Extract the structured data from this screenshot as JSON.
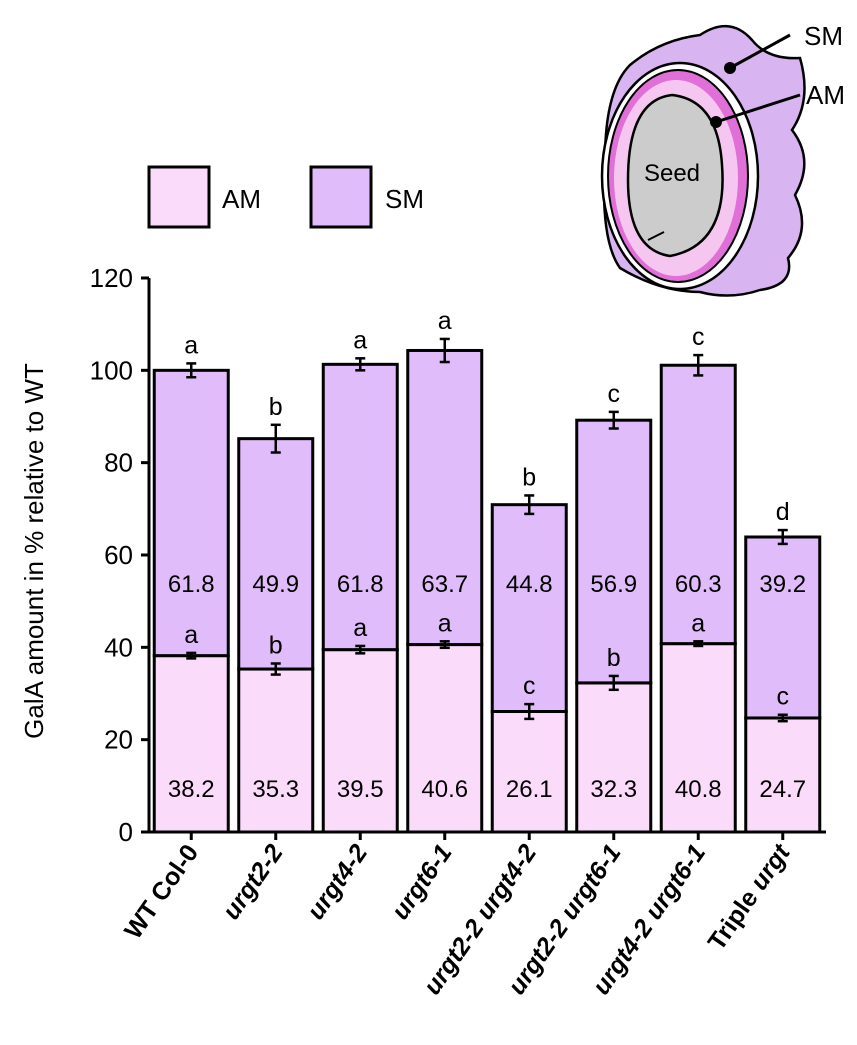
{
  "chart_data": {
    "type": "bar",
    "stacked": true,
    "categories": [
      {
        "label": "WT Col-0",
        "italic": false
      },
      {
        "label": "urgt2-2",
        "italic": true
      },
      {
        "label": "urgt4-2",
        "italic": true
      },
      {
        "label": "urgt6-1",
        "italic": true
      },
      {
        "label": "urgt2-2 urgt4-2",
        "italic": true
      },
      {
        "label": "urgt2-2 urgt6-1",
        "italic": true
      },
      {
        "label": "urgt4-2 urgt6-1",
        "italic": true
      },
      {
        "label": "Triple urgt",
        "italic": true,
        "plain_prefix": "Triple "
      }
    ],
    "series": [
      {
        "name": "AM",
        "color": "#fadcfa",
        "values": [
          38.2,
          35.3,
          39.5,
          40.6,
          26.1,
          32.3,
          40.8,
          24.7
        ],
        "value_labels": [
          "38.2",
          "35.3",
          "39.5",
          "40.6",
          "26.1",
          "32.3",
          "40.8",
          "24.7"
        ],
        "errors": [
          0.6,
          1.2,
          0.8,
          0.7,
          1.6,
          1.5,
          0.5,
          0.7
        ],
        "significance": [
          "a",
          "b",
          "a",
          "a",
          "c",
          "b",
          "a",
          "c"
        ]
      },
      {
        "name": "SM",
        "color": "#e0bcfa",
        "values": [
          61.8,
          49.9,
          61.8,
          63.7,
          44.8,
          56.9,
          60.3,
          39.2
        ],
        "value_labels": [
          "61.8",
          "49.9",
          "61.8",
          "63.7",
          "44.8",
          "56.9",
          "60.3",
          "39.2"
        ],
        "totals": [
          100,
          85.2,
          101.3,
          104.3,
          70.9,
          89.2,
          101.1,
          63.9
        ],
        "errors": [
          1.5,
          3.0,
          1.3,
          2.5,
          2.0,
          1.8,
          2.2,
          1.5
        ],
        "significance": [
          "a",
          "b",
          "a",
          "a",
          "b",
          "c",
          "c",
          "d"
        ]
      }
    ],
    "ylabel": "GalA amount in % relative to WT",
    "xlabel": "",
    "ylim": [
      0,
      120
    ],
    "yticks": [
      0,
      20,
      40,
      60,
      80,
      100,
      120
    ],
    "legend": {
      "placement": "top-left",
      "entries": [
        "AM",
        "SM"
      ]
    },
    "grid": false
  },
  "diagram": {
    "seed_label": "Seed",
    "callouts": [
      "SM",
      "AM"
    ],
    "colors": {
      "sm": "#d8b4f0",
      "am": "#f0b0e8",
      "am_inner": "#e070d8",
      "seed": "#cccccc"
    }
  }
}
